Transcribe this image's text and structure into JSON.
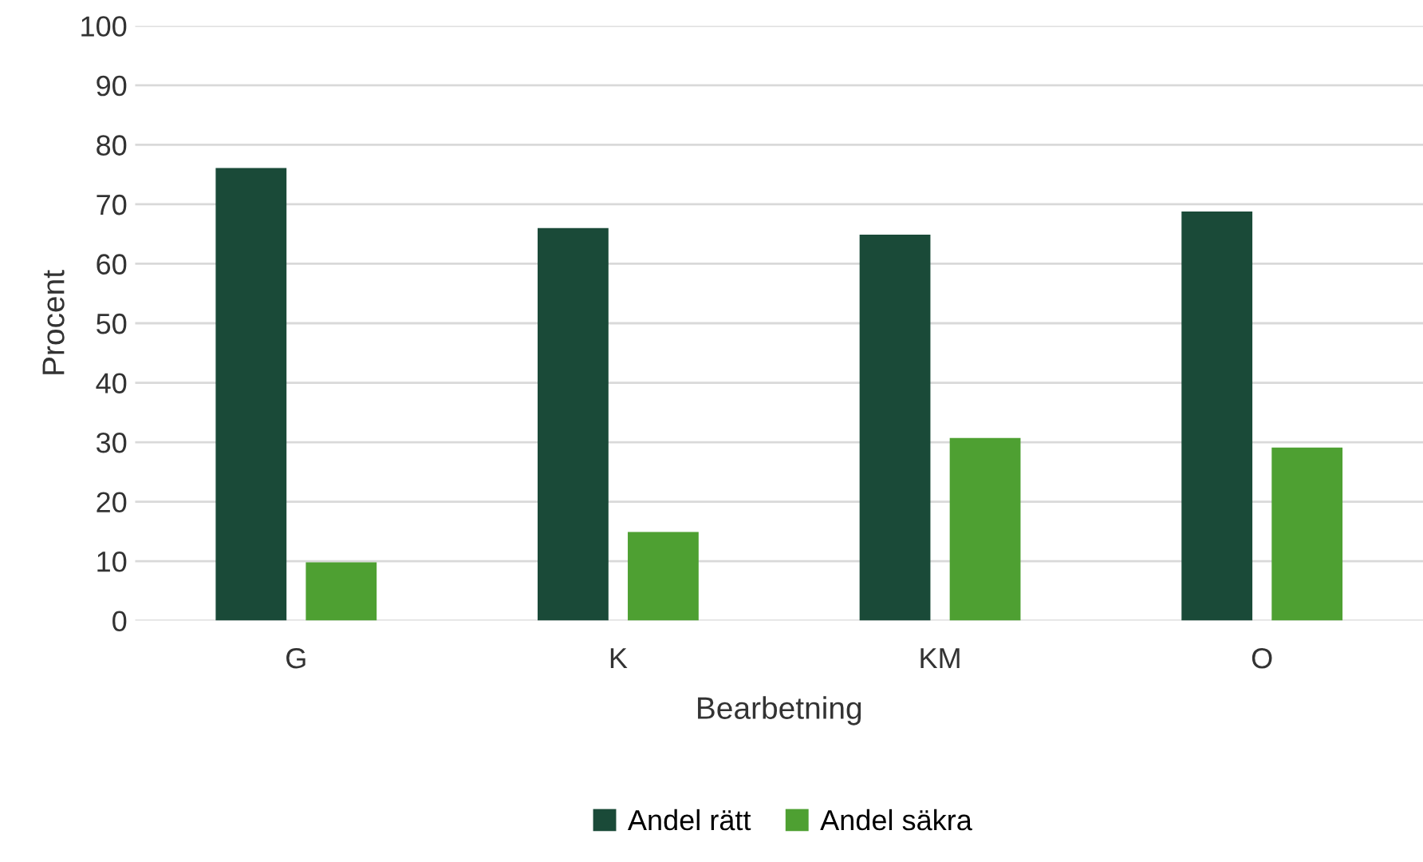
{
  "chart_data": {
    "type": "bar",
    "xlabel": "Bearbetning",
    "ylabel": "Procent",
    "categories": [
      "G",
      "K",
      "KM",
      "O"
    ],
    "series": [
      {
        "name": "Andel rätt",
        "color": "#1a4a38",
        "values": [
          76.1,
          66.0,
          64.9,
          68.8
        ]
      },
      {
        "name": "Andel säkra",
        "color": "#4ea032",
        "values": [
          9.8,
          14.9,
          30.7,
          29.1
        ]
      }
    ],
    "ylim": [
      0,
      100
    ],
    "yticks": [
      0,
      10,
      20,
      30,
      40,
      50,
      60,
      70,
      80,
      90,
      100
    ],
    "grid": "y",
    "legend": "bottom"
  }
}
